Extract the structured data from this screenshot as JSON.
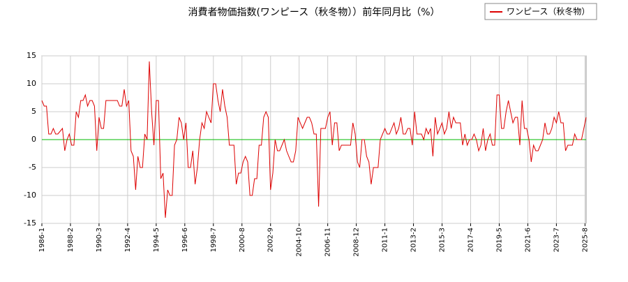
{
  "chart_data": {
    "type": "line",
    "title": "消費者物価指数(ワンピース（秋冬物））前年同月比（%）",
    "x": [
      "1986-1",
      "1986-3",
      "1986-5",
      "1986-7",
      "1986-9",
      "1986-11",
      "1987-1",
      "1987-3",
      "1987-5",
      "1987-7",
      "1987-9",
      "1987-11",
      "1988-1",
      "1988-3",
      "1988-5",
      "1988-7",
      "1988-9",
      "1988-11",
      "1989-1",
      "1989-3",
      "1989-5",
      "1989-7",
      "1989-9",
      "1989-11",
      "1990-1",
      "1990-3",
      "1990-5",
      "1990-7",
      "1990-9",
      "1990-11",
      "1991-1",
      "1991-3",
      "1991-5",
      "1991-7",
      "1991-9",
      "1991-11",
      "1992-1",
      "1992-3",
      "1992-5",
      "1992-7",
      "1992-9",
      "1992-11",
      "1993-1",
      "1993-3",
      "1993-5",
      "1993-7",
      "1993-9",
      "1993-11",
      "1994-1",
      "1994-3",
      "1994-5",
      "1994-7",
      "1994-9",
      "1994-11",
      "1995-1",
      "1995-3",
      "1995-5",
      "1995-7",
      "1995-9",
      "1995-11",
      "1996-1",
      "1996-3",
      "1996-5",
      "1996-7",
      "1996-9",
      "1996-11",
      "1997-1",
      "1997-3",
      "1997-5",
      "1997-7",
      "1997-9",
      "1997-11",
      "1998-1",
      "1998-3",
      "1998-5",
      "1998-7",
      "1998-9",
      "1998-11",
      "1999-1",
      "1999-3",
      "1999-5",
      "1999-7",
      "1999-9",
      "1999-11",
      "2000-1",
      "2000-3",
      "2000-5",
      "2000-7",
      "2000-9",
      "2000-11",
      "2001-1",
      "2001-3",
      "2001-5",
      "2001-7",
      "2001-9",
      "2001-11",
      "2002-1",
      "2002-3",
      "2002-5",
      "2002-7",
      "2002-9",
      "2002-11",
      "2003-1",
      "2003-3",
      "2003-5",
      "2003-7",
      "2003-9",
      "2003-11",
      "2004-1",
      "2004-3",
      "2004-5",
      "2004-7",
      "2004-9",
      "2004-11",
      "2005-1",
      "2005-3",
      "2005-5",
      "2005-7",
      "2005-9",
      "2005-11",
      "2006-1",
      "2006-3",
      "2006-5",
      "2006-7",
      "2006-9",
      "2006-11",
      "2007-1",
      "2007-3",
      "2007-5",
      "2007-7",
      "2007-9",
      "2007-11",
      "2008-1",
      "2008-3",
      "2008-5",
      "2008-7",
      "2008-9",
      "2008-11",
      "2009-1",
      "2009-3",
      "2009-5",
      "2009-7",
      "2009-9",
      "2009-11",
      "2010-1",
      "2010-3",
      "2010-5",
      "2010-7",
      "2010-9",
      "2010-11",
      "2011-1",
      "2011-3",
      "2011-5",
      "2011-7",
      "2011-9",
      "2011-11",
      "2012-1",
      "2012-3",
      "2012-5",
      "2012-7",
      "2012-9",
      "2012-11",
      "2013-1",
      "2013-3",
      "2013-5",
      "2013-7",
      "2013-9",
      "2013-11",
      "2014-1",
      "2014-3",
      "2014-5",
      "2014-7",
      "2014-9",
      "2014-11",
      "2015-1",
      "2015-3",
      "2015-5",
      "2015-7",
      "2015-9",
      "2015-11",
      "2016-1",
      "2016-3",
      "2016-5",
      "2016-7",
      "2016-9",
      "2016-11",
      "2017-1",
      "2017-3",
      "2017-5",
      "2017-7",
      "2017-9",
      "2017-11",
      "2018-1",
      "2018-3",
      "2018-5",
      "2018-7",
      "2018-9",
      "2018-11",
      "2019-1",
      "2019-3",
      "2019-5",
      "2019-7",
      "2019-9",
      "2019-11",
      "2020-1",
      "2020-3",
      "2020-5",
      "2020-7",
      "2020-9",
      "2020-11",
      "2021-1",
      "2021-3",
      "2021-5",
      "2021-7",
      "2021-9",
      "2021-11",
      "2022-1",
      "2022-3",
      "2022-5",
      "2022-7",
      "2022-9",
      "2022-11",
      "2023-1",
      "2023-3",
      "2023-5",
      "2023-7",
      "2023-9",
      "2023-11",
      "2024-1",
      "2024-3",
      "2024-5",
      "2024-7",
      "2024-9",
      "2024-11",
      "2025-1",
      "2025-3",
      "2025-5",
      "2025-7",
      "2025-9"
    ],
    "series": [
      {
        "name": "ワンピース（秋冬物）",
        "color": "#dd0000",
        "values": [
          7,
          6,
          6,
          1,
          1,
          2,
          1,
          1,
          1.5,
          2,
          -2,
          0,
          1,
          -1,
          -1,
          5,
          4,
          7,
          7,
          8,
          6,
          7,
          7,
          6,
          -2,
          4,
          2,
          2,
          7,
          7,
          7,
          7,
          7,
          7,
          6,
          6,
          9,
          6,
          7,
          -2,
          -3,
          -9,
          -3,
          -5,
          -5,
          1,
          0,
          14,
          5,
          -1,
          7,
          7,
          -7,
          -6,
          -14,
          -9,
          -10,
          -10,
          -1,
          0,
          4,
          3,
          0,
          3,
          -5,
          -5,
          -2,
          -8,
          -5,
          0,
          3,
          2,
          5,
          4,
          3,
          10,
          10,
          7,
          5,
          9,
          6,
          4,
          -1,
          -1,
          -1,
          -8,
          -6,
          -6,
          -4,
          -3,
          -4,
          -10,
          -10,
          -7,
          -7,
          -1,
          -1,
          4,
          5,
          4,
          -9,
          -6,
          0,
          -2,
          -2,
          -1,
          0,
          -2,
          -3,
          -4,
          -4,
          -2,
          4,
          3,
          2,
          3,
          4,
          4,
          3,
          1,
          1,
          -12,
          2,
          2,
          2,
          4,
          5,
          -1,
          3,
          3,
          -2,
          -1,
          -1,
          -1,
          -1,
          -1,
          3,
          1,
          -4,
          -5,
          0,
          0,
          -3,
          -4,
          -8,
          -5,
          -5,
          -5,
          0,
          1,
          2,
          1,
          1,
          2,
          3,
          1,
          2,
          4,
          1,
          1,
          2,
          2,
          -1,
          5,
          1,
          1,
          1,
          0,
          2,
          1,
          2,
          -3,
          4,
          1,
          2,
          3,
          1,
          2,
          5,
          2,
          4,
          3,
          3,
          3,
          -1,
          1,
          -1,
          0,
          0,
          1,
          0,
          -2,
          -1,
          2,
          -2,
          0,
          1,
          -1,
          -1,
          8,
          8,
          2,
          2,
          5,
          7,
          5,
          3,
          4,
          4,
          -1,
          7,
          2,
          2,
          0,
          -4,
          -1,
          -2,
          -2,
          -1,
          0,
          3,
          1,
          1,
          2,
          4,
          3,
          5,
          3,
          3,
          -2,
          -1,
          -1,
          -1,
          1,
          0,
          0,
          0,
          2,
          4
        ]
      }
    ],
    "xlim": [
      "1986-1",
      "2025-9"
    ],
    "xticks": [
      "1986-1",
      "1988-2",
      "1990-3",
      "1992-4",
      "1994-5",
      "1996-6",
      "1998-7",
      "2000-8",
      "2002-9",
      "2004-10",
      "2006-11",
      "2008-12",
      "2011-1",
      "2013-2",
      "2015-3",
      "2017-4",
      "2019-5",
      "2021-6",
      "2023-7",
      "2025-8"
    ],
    "ylim": [
      -15,
      15
    ],
    "yticks": [
      -15,
      -10,
      -5,
      0,
      5,
      10,
      15
    ],
    "grid": true,
    "hline": 0,
    "hline_color": "#00bb00",
    "legend": "top-right"
  }
}
